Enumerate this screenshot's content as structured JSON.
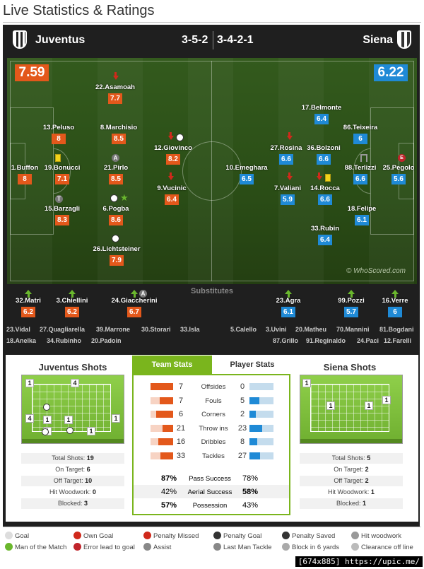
{
  "title": "Live Statistics & Ratings",
  "home": {
    "name": "Juventus",
    "formation": "3-5-2",
    "rating": "7.59"
  },
  "away": {
    "name": "Siena",
    "formation": "3-4-2-1",
    "rating": "6.22"
  },
  "home_players": [
    {
      "name": "22.Asamoah",
      "rating": "7.7"
    },
    {
      "name": "13.Peluso",
      "rating": "8"
    },
    {
      "name": "8.Marchisio",
      "rating": "8.5"
    },
    {
      "name": "1.Buffon",
      "rating": "8"
    },
    {
      "name": "19.Bonucci",
      "rating": "7.1"
    },
    {
      "name": "21.Pirlo",
      "rating": "8.5"
    },
    {
      "name": "12.Giovinco",
      "rating": "8.2"
    },
    {
      "name": "9.Vucinic",
      "rating": "6.4"
    },
    {
      "name": "15.Barzagli",
      "rating": "8.3"
    },
    {
      "name": "6.Pogba",
      "rating": "8.6"
    },
    {
      "name": "26.Lichtsteiner",
      "rating": "7.9"
    }
  ],
  "away_players": [
    {
      "name": "17.Belmonte",
      "rating": "6.4"
    },
    {
      "name": "86.Teixeira",
      "rating": "6"
    },
    {
      "name": "27.Rosina",
      "rating": "6.6"
    },
    {
      "name": "36.Bolzoni",
      "rating": "6.6"
    },
    {
      "name": "10.Emeghara",
      "rating": "6.5"
    },
    {
      "name": "88.Terlizzi",
      "rating": "6.6"
    },
    {
      "name": "25.Pegolo",
      "rating": "5.6"
    },
    {
      "name": "7.Valiani",
      "rating": "5.9"
    },
    {
      "name": "14.Rocca",
      "rating": "6.6"
    },
    {
      "name": "18.Felipe",
      "rating": "6.1"
    },
    {
      "name": "33.Rubin",
      "rating": "6.4"
    }
  ],
  "watermark": "© WhoScored.com",
  "substitutes_label": "Substitutes",
  "home_subs": [
    {
      "name": "32.Matri",
      "rating": "6.2"
    },
    {
      "name": "3.Chiellini",
      "rating": "6.2"
    },
    {
      "name": "24.Giaccherini",
      "rating": "6.7"
    }
  ],
  "away_subs": [
    {
      "name": "23.Agra",
      "rating": "6.1"
    },
    {
      "name": "99.Pozzi",
      "rating": "5.7"
    },
    {
      "name": "16.Verre",
      "rating": "6"
    }
  ],
  "home_bench_1": [
    "23.Vidal",
    "27.Quagliarella",
    "39.Marrone",
    "30.Storari",
    "33.Isla"
  ],
  "home_bench_2": [
    "18.Anelka",
    "34.Rubinho",
    "20.Padoin"
  ],
  "away_bench_1": [
    "5.Calello",
    "3.Uvini",
    "20.Matheu",
    "70.Mannini",
    "81.Bogdani"
  ],
  "away_bench_2": [
    "87.Grillo",
    "91.Reginaldo",
    "24.Paci",
    "12.Farelli"
  ],
  "home_shots": {
    "title": "Juventus Shots",
    "markers": [
      "1",
      "4",
      "4",
      "1",
      "1",
      "1",
      "1",
      "1"
    ],
    "rows": [
      {
        "label": "Total Shots:",
        "value": "19"
      },
      {
        "label": "On Target:",
        "value": "6"
      },
      {
        "label": "Off Target:",
        "value": "10"
      },
      {
        "label": "Hit Woodwork:",
        "value": "0"
      },
      {
        "label": "Blocked:",
        "value": "3"
      }
    ]
  },
  "away_shots": {
    "title": "Siena Shots",
    "markers": [
      "1",
      "1",
      "1",
      "1"
    ],
    "rows": [
      {
        "label": "Total Shots:",
        "value": "5"
      },
      {
        "label": "On Target:",
        "value": "2"
      },
      {
        "label": "Off Target:",
        "value": "2"
      },
      {
        "label": "Hit Woodwork:",
        "value": "1"
      },
      {
        "label": "Blocked:",
        "value": "1"
      }
    ]
  },
  "tabs": {
    "team": "Team Stats",
    "player": "Player Stats"
  },
  "team_stats": [
    {
      "label": "Offsides",
      "home": "7",
      "away": "0",
      "home_share": 1.0,
      "away_share": 0.0
    },
    {
      "label": "Fouls",
      "home": "7",
      "away": "5",
      "home_share": 0.58,
      "away_share": 0.42
    },
    {
      "label": "Corners",
      "home": "6",
      "away": "2",
      "home_share": 0.75,
      "away_share": 0.25
    },
    {
      "label": "Throw ins",
      "home": "21",
      "away": "23",
      "home_share": 0.48,
      "away_share": 0.52
    },
    {
      "label": "Dribbles",
      "home": "16",
      "away": "8",
      "home_share": 0.67,
      "away_share": 0.33
    },
    {
      "label": "Tackles",
      "home": "33",
      "away": "27",
      "home_share": 0.55,
      "away_share": 0.45
    }
  ],
  "pct_stats": [
    {
      "label": "Pass Success",
      "home": "87%",
      "away": "78%",
      "bold": "home"
    },
    {
      "label": "Aerial Success",
      "home": "42%",
      "away": "58%",
      "bold": "away"
    },
    {
      "label": "Possession",
      "home": "57%",
      "away": "43%",
      "bold": "home"
    }
  ],
  "legend": [
    {
      "label": "Goal",
      "icon": "ball-icon"
    },
    {
      "label": "Own Goal",
      "icon": "own-goal-icon"
    },
    {
      "label": "Penalty Missed",
      "icon": "penalty-missed-icon"
    },
    {
      "label": "Penalty Goal",
      "icon": "penalty-goal-icon"
    },
    {
      "label": "Penalty Saved",
      "icon": "penalty-saved-icon"
    },
    {
      "label": "Hit woodwork",
      "icon": "woodwork-icon"
    },
    {
      "label": "Man of the Match",
      "icon": "star-icon"
    },
    {
      "label": "Error lead to goal",
      "icon": "error-icon"
    },
    {
      "label": "Assist",
      "icon": "assist-icon"
    },
    {
      "label": "Last Man Tackle",
      "icon": "last-man-tackle-icon"
    },
    {
      "label": "Block in 6 yards",
      "icon": "block-icon"
    },
    {
      "label": "Clearance off line",
      "icon": "clearance-icon"
    }
  ],
  "credit": "[674x885] https://upic.me/",
  "colors": {
    "home": "#e3581b",
    "away": "#1f8ad6",
    "accent": "#7ab51d"
  }
}
